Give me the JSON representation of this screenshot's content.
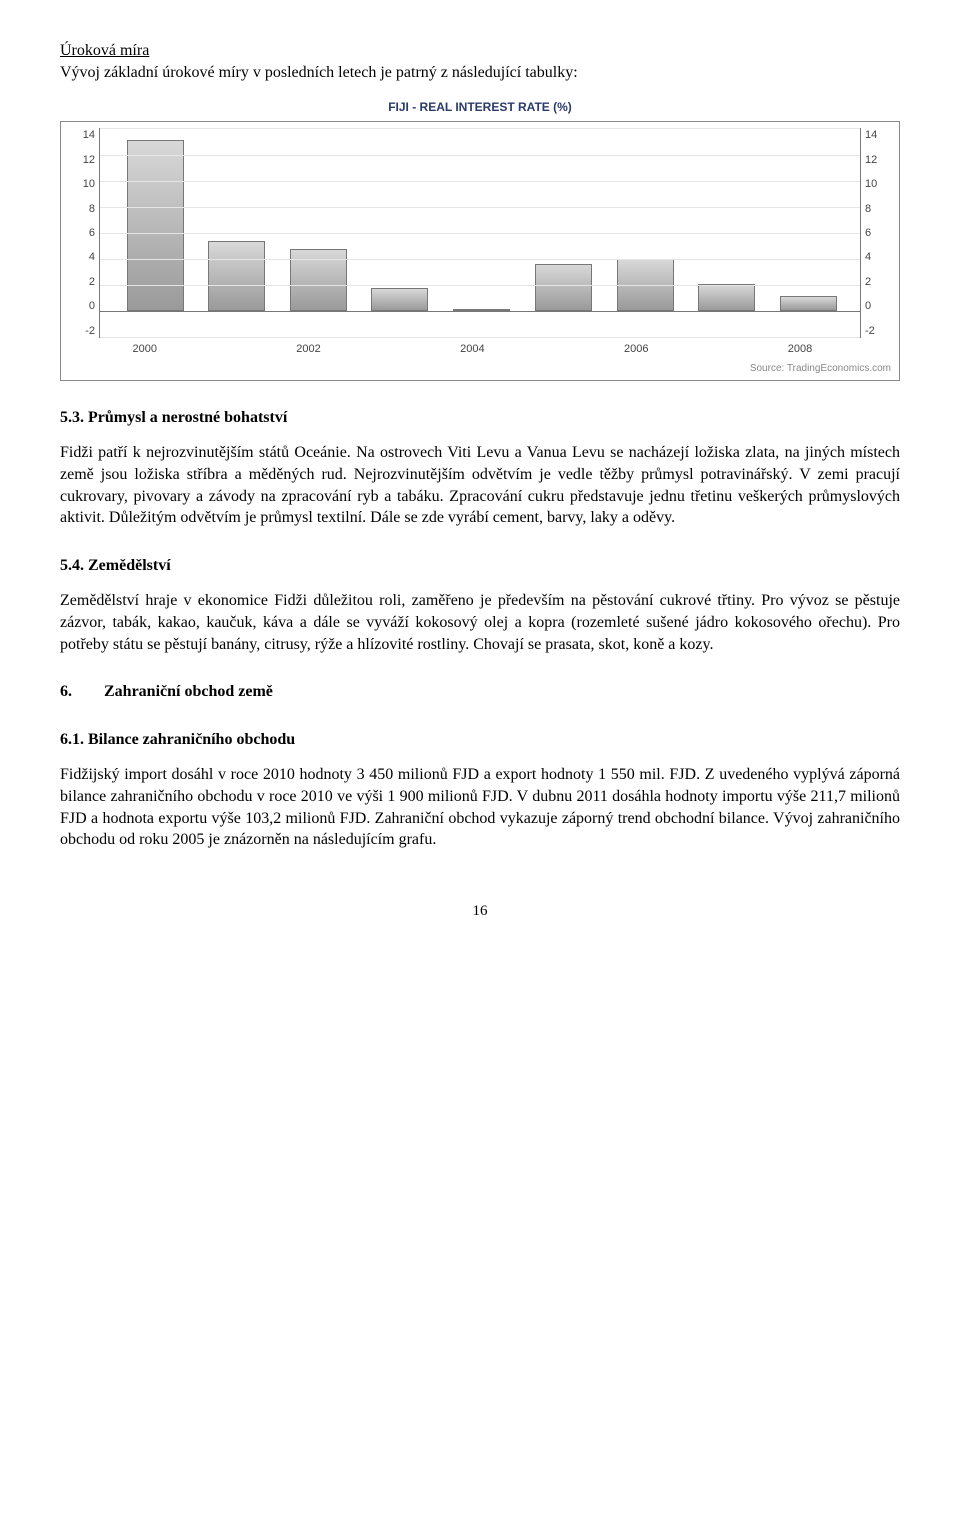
{
  "heading_interest": "Úroková míra",
  "intro_interest": "Vývoj základní úrokové míry v posledních letech je patrný z následující tabulky:",
  "chart": {
    "title": "FIJI - REAL INTEREST RATE (%)",
    "title_color": "#2a3a6a",
    "title_fontsize": 12,
    "ymin": -2,
    "ymax": 14,
    "ytick_step": 2,
    "yticks": [
      14,
      12,
      10,
      8,
      6,
      4,
      2,
      0,
      -2
    ],
    "xlabels": [
      "2000",
      "2002",
      "2004",
      "2006",
      "2008"
    ],
    "xlabel_positions_pct": [
      6,
      27.5,
      49,
      70.5,
      92
    ],
    "bars": [
      {
        "year": "2000",
        "value": 13.1,
        "left_pct": 3.5
      },
      {
        "year": "2001",
        "value": 5.4,
        "left_pct": 14.2
      },
      {
        "year": "2002",
        "value": 4.8,
        "left_pct": 25.0
      },
      {
        "year": "2003",
        "value": 1.8,
        "left_pct": 35.7
      },
      {
        "year": "2004",
        "value": 0.1,
        "left_pct": 46.5
      },
      {
        "year": "2005",
        "value": 3.6,
        "left_pct": 57.2
      },
      {
        "year": "2006",
        "value": 4.0,
        "left_pct": 68.0
      },
      {
        "year": "2007",
        "value": 2.1,
        "left_pct": 78.7
      },
      {
        "year": "2008",
        "value": 1.2,
        "left_pct": 89.5
      }
    ],
    "bar_width_pct": 7.5,
    "bar_color_top": "#d8d8d8",
    "bar_color_bottom": "#9a9a9a",
    "bar_border": "#777777",
    "grid_color": "#e5e5e5",
    "axis_color": "#777777",
    "background": "#ffffff",
    "source": "Source: TradingEconomics.com"
  },
  "sec_industry_title": "5.3. Průmysl a nerostné bohatství",
  "industry_p1": "Fidži patří k nejrozvinutějším států Oceánie. Na ostrovech Viti Levu a Vanua Levu se nacházejí ložiska zlata, na jiných místech země jsou ložiska stříbra a měděných rud. Nejrozvinutějším odvětvím je vedle těžby průmysl potravinářský. V zemi pracují cukrovary, pivovary a závody na zpracování ryb a tabáku. Zpracování cukru představuje jednu třetinu veškerých průmyslových aktivit. Důležitým odvětvím je průmysl textilní. Dále se zde vyrábí cement, barvy, laky a oděvy.",
  "sec_agri_title": "5.4. Zemědělství",
  "agri_p1": "Zemědělství hraje v ekonomice Fidži důležitou roli, zaměřeno je především na pěstování cukrové třtiny. Pro vývoz se pěstuje zázvor, tabák, kakao, kaučuk, káva a dále se vyváží kokosový olej a kopra (rozemleté sušené jádro kokosového ořechu). Pro potřeby státu se pěstují banány, citrusy, rýže a hlízovité rostliny. Chovají se prasata, skot, koně a kozy.",
  "sec_trade_title": "6.        Zahraniční obchod země",
  "sec_balance_title": "6.1. Bilance zahraničního obchodu",
  "balance_p1": "Fidžijský import dosáhl v roce 2010 hodnoty 3 450 milionů FJD a export hodnoty 1 550 mil. FJD. Z uvedeného vyplývá záporná bilance zahraničního obchodu v roce 2010 ve výši 1 900 milionů FJD. V dubnu 2011 dosáhla hodnoty importu výše 211,7 milionů FJD a hodnota exportu výše 103,2 milionů FJD. Zahraniční obchod vykazuje záporný trend obchodní bilance. Vývoj zahraničního obchodu od roku 2005 je znázorněn na následujícím grafu.",
  "page_number": "16"
}
